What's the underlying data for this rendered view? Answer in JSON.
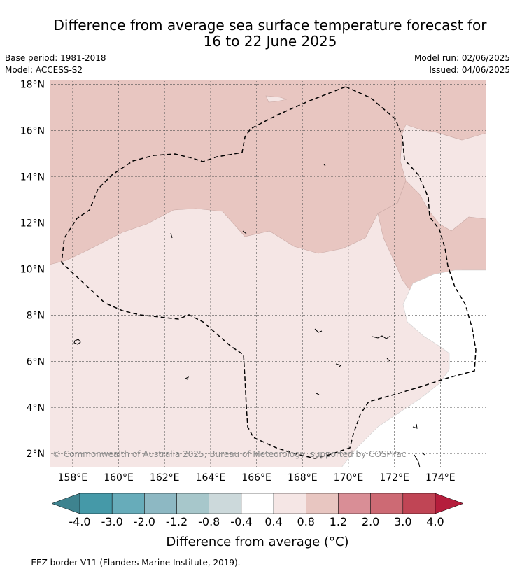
{
  "title": {
    "line1": "Difference from average sea surface temperature forecast for",
    "line2": "16 to 22 June 2025"
  },
  "meta": {
    "base_period": "Base period: 1981-2018",
    "model": "Model: ACCESS-S2",
    "model_run": "Model run: 02/06/2025",
    "issued": "Issued: 04/06/2025"
  },
  "map": {
    "lat_labels": [
      "18°N",
      "16°N",
      "14°N",
      "12°N",
      "10°N",
      "8°N",
      "6°N",
      "4°N",
      "2°N"
    ],
    "lon_labels": [
      "158°E",
      "160°E",
      "162°E",
      "164°E",
      "166°E",
      "168°E",
      "170°E",
      "172°E",
      "174°E"
    ],
    "lon_range": [
      157,
      176
    ],
    "lat_range": [
      1.4,
      18.2
    ],
    "copyright": "© Commonwealth of Australia 2025, Bureau of Meteorology, supported by COSPPac",
    "colors": {
      "anomaly_0_4_to_0_8": "#f5e6e5",
      "anomaly_0_8_to_1_2": "#e8c6c1",
      "anomaly_neg0_4_to_0_4": "#ffffff",
      "eez_border": "#000000"
    }
  },
  "colorbar": {
    "ticks": [
      "-4.0",
      "-3.0",
      "-2.0",
      "-1.2",
      "-0.8",
      "-0.4",
      "0.4",
      "0.8",
      "1.2",
      "2.0",
      "3.0",
      "4.0"
    ],
    "colors": [
      "#4599a8",
      "#67acba",
      "#8db8c3",
      "#a7c7cb",
      "#ccd9db",
      "#ffffff",
      "#f5e6e5",
      "#e8c6c1",
      "#d98e96",
      "#cd6a74",
      "#c04555"
    ],
    "under_color": "#3e838f",
    "over_color": "#b51d3c",
    "title": "Difference from average (°C)"
  },
  "footer": {
    "legend": "--  --  -- EEZ border V11 (Flanders Marine Institute, 2019)."
  }
}
